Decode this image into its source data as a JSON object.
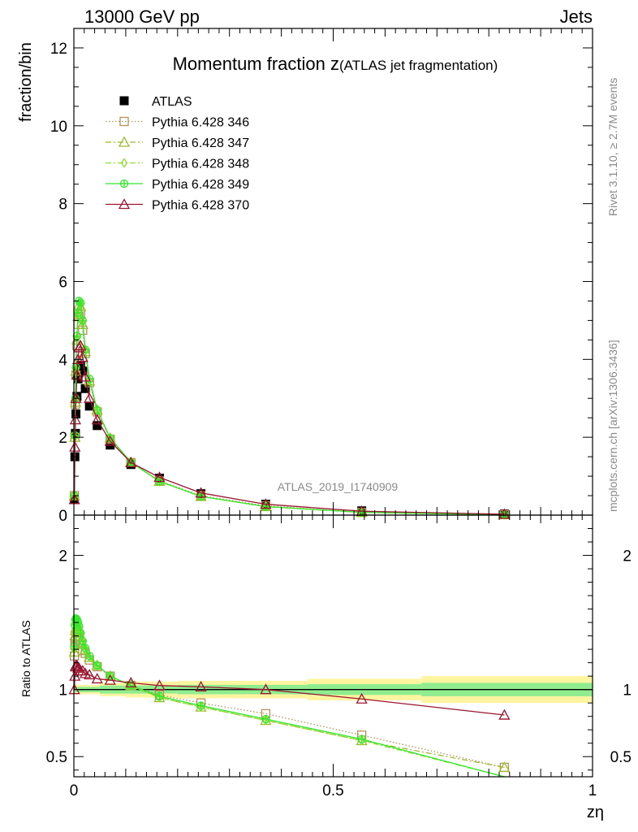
{
  "header": {
    "left": "13000 GeV pp",
    "right": "Jets"
  },
  "side_labels": {
    "rivet": "Rivet 3.1.10, ≥ 2.7M events",
    "mcplots": "mcplots.cern.ch [arXiv:1306.3436]"
  },
  "chart_data": [
    {
      "type": "line",
      "panel": "main",
      "title_main": "Momentum fraction z",
      "title_sub": "(ATLAS jet fragmentation)",
      "ylabel": "fraction/bin",
      "analysis_label": "ATLAS_2019_I1740909",
      "xlim": [
        0,
        1
      ],
      "ylim": [
        0,
        12.5
      ],
      "y_ticks": [
        "0",
        "2",
        "4",
        "6",
        "8",
        "10",
        "12"
      ],
      "x": [
        0.001,
        0.002,
        0.003,
        0.004,
        0.006,
        0.008,
        0.01,
        0.013,
        0.017,
        0.022,
        0.03,
        0.045,
        0.07,
        0.11,
        0.165,
        0.245,
        0.37,
        0.555,
        0.83
      ],
      "series": [
        {
          "name": "ATLAS",
          "color": "#000000",
          "marker": "square-filled",
          "line": "none",
          "values": [
            0.4,
            1.5,
            2.1,
            2.6,
            3.05,
            3.5,
            3.7,
            3.85,
            3.7,
            3.25,
            2.8,
            2.3,
            1.8,
            1.3,
            0.95,
            0.55,
            0.28,
            0.11,
            0.03
          ]
        },
        {
          "name": "Pythia 6.428 346",
          "color": "#b5935a",
          "marker": "square-open",
          "line": "dotted",
          "values": [
            0.5,
            2.0,
            2.85,
            3.6,
            4.35,
            4.9,
            5.1,
            5.15,
            4.75,
            4.15,
            3.4,
            2.65,
            1.95,
            1.35,
            0.88,
            0.5,
            0.24,
            0.07,
            0.013
          ]
        },
        {
          "name": "Pythia 6.428 347",
          "color": "#9bbb2a",
          "marker": "triangle-open",
          "line": "dashdot",
          "values": [
            0.5,
            2.0,
            2.9,
            3.7,
            4.5,
            5.1,
            5.4,
            5.35,
            4.9,
            4.2,
            3.45,
            2.7,
            1.98,
            1.36,
            0.87,
            0.48,
            0.22,
            0.07,
            0.013
          ]
        },
        {
          "name": "Pythia 6.428 348",
          "color": "#8ee02e",
          "marker": "diamond-open",
          "line": "dashdot",
          "values": [
            0.5,
            2.0,
            2.95,
            3.75,
            4.55,
            5.15,
            5.45,
            5.4,
            4.95,
            4.25,
            3.45,
            2.7,
            1.98,
            1.36,
            0.86,
            0.48,
            0.22,
            0.07,
            0.01
          ]
        },
        {
          "name": "Pythia 6.428 349",
          "color": "#33e82c",
          "marker": "cross-circle",
          "line": "solid",
          "values": [
            0.5,
            2.05,
            3.0,
            3.8,
            4.6,
            5.2,
            5.5,
            5.45,
            5.0,
            4.25,
            3.5,
            2.7,
            1.98,
            1.36,
            0.87,
            0.48,
            0.22,
            0.07,
            0.012
          ]
        },
        {
          "name": "Pythia 6.428 370",
          "color": "#9b1530",
          "marker": "triangle-open",
          "line": "solid",
          "values": [
            0.4,
            1.75,
            2.45,
            3.0,
            3.6,
            4.0,
            4.3,
            4.35,
            4.05,
            3.55,
            3.0,
            2.45,
            1.9,
            1.35,
            0.97,
            0.57,
            0.28,
            0.1,
            0.024
          ]
        }
      ]
    },
    {
      "type": "line",
      "panel": "ratio",
      "ylabel": "Ratio to ATLAS",
      "xlabel": "zη",
      "xlim": [
        0,
        1
      ],
      "ylim": [
        0.35,
        2.3
      ],
      "x_ticks": [
        "0",
        "0.5",
        "1"
      ],
      "y_ticks": [
        "0.5",
        "1",
        "2"
      ],
      "x": [
        0.001,
        0.002,
        0.003,
        0.004,
        0.006,
        0.008,
        0.01,
        0.013,
        0.017,
        0.022,
        0.03,
        0.045,
        0.07,
        0.11,
        0.165,
        0.245,
        0.37,
        0.555,
        0.83
      ],
      "bands": {
        "edges": [
          0,
          0.05,
          0.1,
          0.2,
          0.45,
          0.67,
          1.0
        ],
        "inner_halfwidth": [
          0.02,
          0.03,
          0.03,
          0.035,
          0.04,
          0.05
        ],
        "outer_halfwidth": [
          0.035,
          0.05,
          0.06,
          0.065,
          0.08,
          0.1
        ],
        "inner_color": "#8fec8f",
        "outer_color": "#fff5a0"
      },
      "series": [
        {
          "name": "Pythia 6.428 346",
          "color": "#b5935a",
          "marker": "square-open",
          "line": "dotted",
          "values": [
            1.25,
            1.33,
            1.36,
            1.38,
            1.42,
            1.4,
            1.37,
            1.34,
            1.29,
            1.27,
            1.22,
            1.17,
            1.1,
            1.03,
            0.96,
            0.9,
            0.82,
            0.66,
            0.42
          ]
        },
        {
          "name": "Pythia 6.428 347",
          "color": "#9bbb2a",
          "marker": "triangle-open",
          "line": "dashdot",
          "values": [
            1.28,
            1.4,
            1.44,
            1.46,
            1.47,
            1.47,
            1.45,
            1.4,
            1.34,
            1.3,
            1.24,
            1.18,
            1.1,
            1.03,
            0.94,
            0.87,
            0.77,
            0.62,
            0.42
          ]
        },
        {
          "name": "Pythia 6.428 348",
          "color": "#8ee02e",
          "marker": "diamond-open",
          "line": "dashdot",
          "values": [
            1.3,
            1.45,
            1.49,
            1.5,
            1.5,
            1.48,
            1.46,
            1.41,
            1.35,
            1.3,
            1.24,
            1.18,
            1.1,
            1.03,
            0.94,
            0.87,
            0.77,
            0.62,
            0.32
          ]
        },
        {
          "name": "Pythia 6.428 349",
          "color": "#33e82c",
          "marker": "cross-circle",
          "line": "solid",
          "values": [
            1.32,
            1.48,
            1.52,
            1.53,
            1.52,
            1.5,
            1.47,
            1.42,
            1.36,
            1.31,
            1.25,
            1.18,
            1.1,
            1.03,
            0.95,
            0.88,
            0.78,
            0.63,
            0.34
          ]
        },
        {
          "name": "Pythia 6.428 370",
          "color": "#9b1530",
          "marker": "triangle-open",
          "line": "solid",
          "values": [
            1.0,
            1.1,
            1.17,
            1.18,
            1.18,
            1.16,
            1.16,
            1.14,
            1.14,
            1.12,
            1.11,
            1.08,
            1.07,
            1.05,
            1.03,
            1.02,
            1.0,
            0.93,
            0.81
          ]
        }
      ]
    }
  ]
}
